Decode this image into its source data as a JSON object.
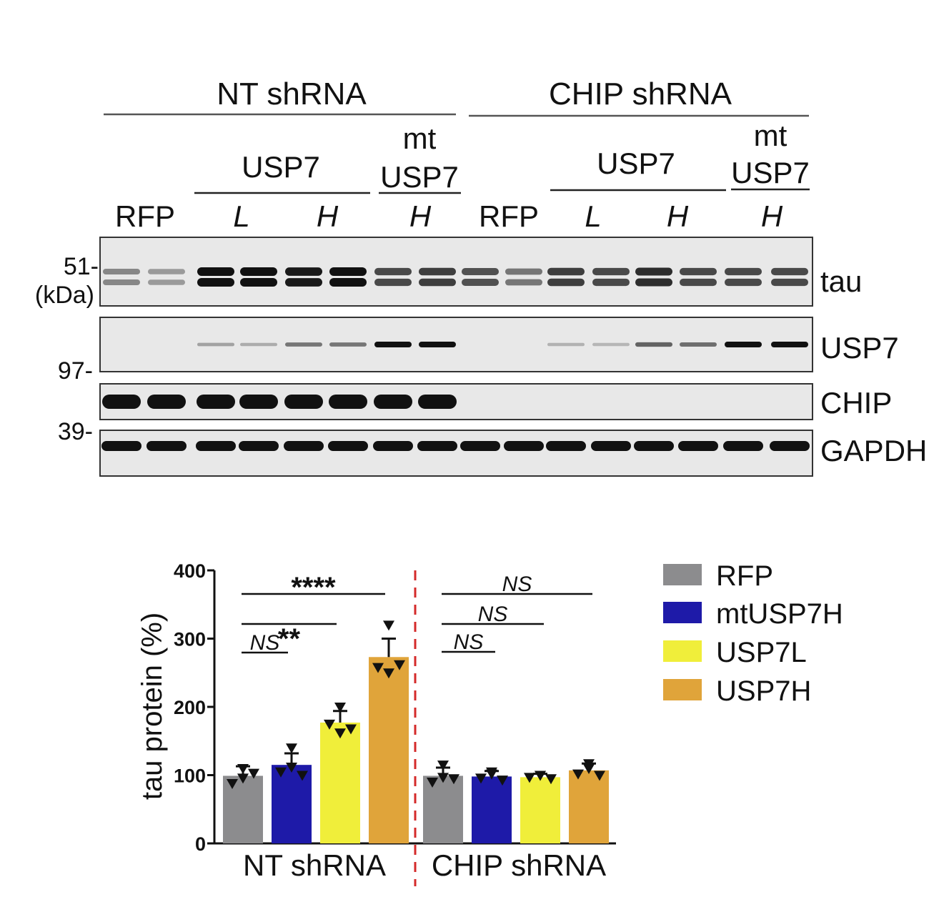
{
  "blot": {
    "group_headers": [
      "NT shRNA",
      "CHIP shRNA"
    ],
    "sub_headers": {
      "usp7": "USP7",
      "mt_top": "mt",
      "mt_bottom": "USP7"
    },
    "lane_labels": {
      "rfp": "RFP",
      "low": "L",
      "high": "H"
    },
    "markers": {
      "m51": "51-",
      "kda": "(kDa)",
      "m97": "97-",
      "m39": "39-"
    },
    "protein_labels": [
      "tau",
      "USP7",
      "CHIP",
      "GAPDH"
    ],
    "band_intensity": {
      "tau": [
        0.35,
        0.25,
        1.0,
        1.0,
        0.95,
        1.0,
        0.7,
        0.75,
        0.65,
        0.45,
        0.75,
        0.7,
        0.85,
        0.7,
        0.7,
        0.7
      ],
      "USP7": [
        0,
        0,
        0.2,
        0.15,
        0.45,
        0.45,
        1.0,
        1.0,
        0,
        0,
        0.12,
        0.1,
        0.55,
        0.5,
        1.0,
        1.0
      ],
      "CHIP": [
        1,
        1,
        1,
        1,
        1,
        1,
        1,
        1,
        0,
        0,
        0,
        0,
        0,
        0,
        0,
        0
      ],
      "GAPDH": [
        1,
        1,
        1,
        1,
        1,
        1,
        1,
        1,
        1,
        1,
        1,
        1,
        1,
        1,
        1,
        1
      ]
    }
  },
  "chart_data": {
    "type": "bar",
    "ylabel": "tau protein (%)",
    "ylim": [
      0,
      400
    ],
    "yticks": [
      "0",
      "100",
      "200",
      "300",
      "400"
    ],
    "groups": [
      "NT shRNA",
      "CHIP shRNA"
    ],
    "series": [
      {
        "name": "RFP",
        "color": "#8c8c8e",
        "values": [
          99,
          99
        ],
        "sem": [
          14,
          12
        ],
        "points": [
          [
            110,
            88,
            96,
            103
          ],
          [
            115,
            90,
            97,
            95
          ]
        ]
      },
      {
        "name": "mtUSP7H",
        "color": "#1e1aa8",
        "values": [
          115,
          98
        ],
        "sem": [
          17,
          8
        ],
        "points": [
          [
            140,
            105,
            112,
            100
          ],
          [
            105,
            96,
            102,
            93
          ]
        ]
      },
      {
        "name": "USP7L",
        "color": "#f0ee3a",
        "values": [
          177,
          97
        ],
        "sem": [
          17,
          5
        ],
        "points": [
          [
            200,
            175,
            162,
            168
          ],
          [
            100,
            97,
            100,
            95
          ]
        ]
      },
      {
        "name": "USP7H",
        "color": "#e0a43a",
        "values": [
          273,
          107
        ],
        "sem": [
          27,
          10
        ],
        "points": [
          [
            320,
            258,
            250,
            262
          ],
          [
            117,
            102,
            110,
            100
          ]
        ]
      }
    ],
    "significance": [
      {
        "label": "NS",
        "group": "NT shRNA",
        "from": "RFP",
        "to": "mtUSP7H"
      },
      {
        "label": "**",
        "group": "NT shRNA",
        "from": "RFP",
        "to": "USP7L"
      },
      {
        "label": "****",
        "group": "NT shRNA",
        "from": "RFP",
        "to": "USP7H"
      },
      {
        "label": "NS",
        "group": "CHIP shRNA",
        "from": "RFP",
        "to": "mtUSP7H"
      },
      {
        "label": "NS",
        "group": "CHIP shRNA",
        "from": "RFP",
        "to": "USP7L"
      },
      {
        "label": "NS",
        "group": "CHIP shRNA",
        "from": "RFP",
        "to": "USP7H"
      }
    ],
    "legend": {
      "placement": "right",
      "entries": [
        "RFP",
        "mtUSP7H",
        "USP7L",
        "USP7H"
      ]
    },
    "separator_color": "#d42a2a"
  }
}
